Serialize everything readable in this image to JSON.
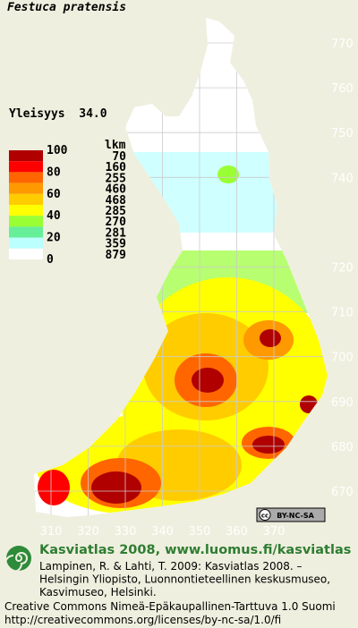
{
  "title": "Festuca pratensis",
  "frequency": "Yleisyys  34.0",
  "legend": {
    "header": "lkm",
    "scale_labels": [
      100,
      80,
      60,
      40,
      20,
      0
    ],
    "classes": [
      {
        "color": "#b00000",
        "count": 70
      },
      {
        "color": "#ff0000",
        "count": 160
      },
      {
        "color": "#ff6600",
        "count": 255
      },
      {
        "color": "#ff9900",
        "count": 460
      },
      {
        "color": "#ffcc00",
        "count": 468
      },
      {
        "color": "#ffff00",
        "count": 285
      },
      {
        "color": "#99ff33",
        "count": 270
      },
      {
        "color": "#66ee99",
        "count": 281
      },
      {
        "color": "#bbffff",
        "count": 359
      },
      {
        "color": "#ffffff",
        "count": 879
      }
    ]
  },
  "map": {
    "northing_labels": [
      770,
      760,
      750,
      740,
      720,
      710,
      700,
      690,
      680,
      670
    ],
    "easting_labels": [
      310,
      320,
      330,
      340,
      350,
      360,
      370
    ]
  },
  "badge": {
    "icon": "cc",
    "text": "BY-NC-SA"
  },
  "footer": {
    "heading": "Kasviatlas 2008, www.luomus.fi/kasviatlas",
    "citation": [
      "Lampinen, R. & Lahti, T. 2009: Kasviatlas 2008. –",
      "Helsingin Yliopisto, Luonnontieteellinen keskusmuseo,",
      "Kasvimuseo, Helsinki."
    ],
    "license": [
      "Creative Commons Nimeä-Epäkaupallinen-Tarttuva 1.0 Suomi",
      "http://creativecommons.org/licenses/by-nc-sa/1.0/fi"
    ]
  }
}
